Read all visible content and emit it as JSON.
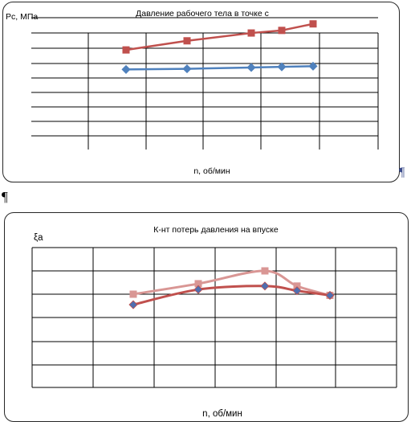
{
  "pilcrow": "¶",
  "chart_data": [
    {
      "type": "line",
      "title": "Давление рабочего тела в точке с",
      "ylabel": "Рс, МПа",
      "xlabel": "n, об/мин",
      "grid": true,
      "legend": "none",
      "series": [
        {
          "color": "#c0504d",
          "marker": "square",
          "x": [
            1,
            2,
            3,
            4,
            5
          ],
          "values": [
            0.74,
            0.81,
            0.87,
            0.89,
            0.94
          ]
        },
        {
          "color": "#4f81bd",
          "marker": "diamond",
          "x": [
            1,
            2,
            3,
            4,
            5
          ],
          "values": [
            0.59,
            0.595,
            0.605,
            0.61,
            0.615
          ]
        }
      ]
    },
    {
      "type": "line",
      "title": "К-нт потерь давления  на впуске",
      "ylabel": "ξa",
      "xlabel": "n, об/мин",
      "grid": true,
      "legend": "none",
      "series": [
        {
          "color": "#d99694",
          "marker": "square",
          "x": [
            1,
            2,
            3,
            4,
            5
          ],
          "values": [
            5.0,
            5.45,
            6.0,
            5.35,
            4.95
          ]
        },
        {
          "color": "#c0504d",
          "marker": "diamond",
          "x": [
            1,
            2,
            3,
            4,
            5
          ],
          "values": [
            4.55,
            5.2,
            5.35,
            5.15,
            4.95
          ]
        }
      ]
    }
  ]
}
